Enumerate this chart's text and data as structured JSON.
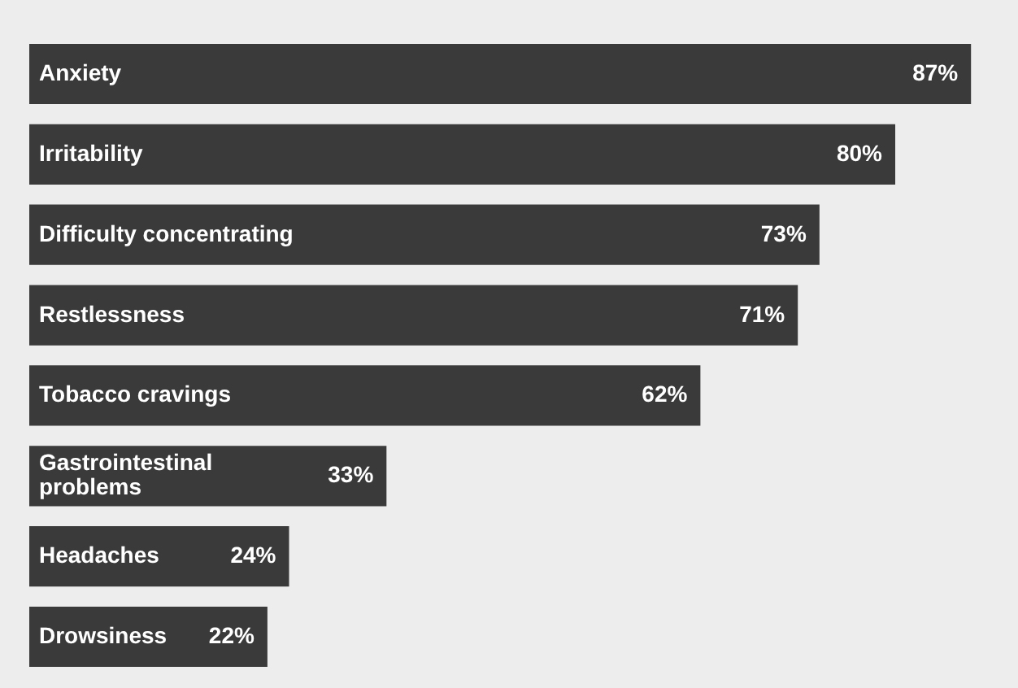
{
  "chart_data": {
    "type": "bar",
    "orientation": "horizontal",
    "relative": false,
    "categories": [
      "Anxiety",
      "Irritability",
      "Difficulty concentrating",
      "Restlessness",
      "Tobacco cravings",
      "Gastrointestinal\nproblems",
      "Headaches",
      "Drowsiness"
    ],
    "values": [
      87,
      80,
      73,
      71,
      62,
      33,
      24,
      22
    ],
    "value_labels": [
      "87%",
      "80%",
      "73%",
      "71%",
      "62%",
      "33%",
      "24%",
      "22%"
    ],
    "color": "#3a3a3a",
    "tick_labels": false
  }
}
